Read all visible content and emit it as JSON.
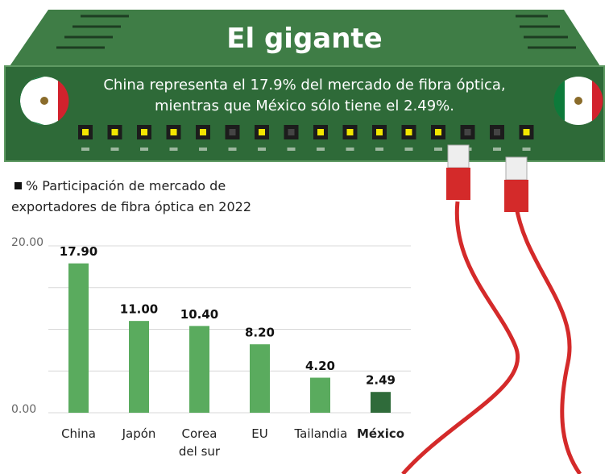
{
  "chart_data": {
    "type": "bar",
    "title": "El gigante",
    "subtitle": "China representa el 17.9% del mercado de fibra óptica, mientras que México sólo tiene el 2.49%.",
    "y_label": "% Participación de mercado de exportadores de fibra óptica en 2022",
    "categories": [
      "China",
      "Japón",
      "Corea del sur",
      "EU",
      "Tailandia",
      "México"
    ],
    "values": [
      17.9,
      11.0,
      10.4,
      8.2,
      4.2,
      2.49
    ],
    "value_labels": [
      "17.90",
      "11.00",
      "10.40",
      "8.20",
      "4.20",
      "2.49"
    ],
    "colors": [
      "#5aab5e",
      "#5aab5e",
      "#5aab5e",
      "#5aab5e",
      "#5aab5e",
      "#2f6b3a"
    ],
    "highlight_index": 5,
    "ylim": [
      0,
      20
    ],
    "yticks": [
      {
        "value": 0,
        "label": "0.00"
      },
      {
        "value": 20,
        "label": "20.00"
      }
    ],
    "minor_yticks": [
      5,
      10,
      15
    ],
    "grid": true
  }
}
